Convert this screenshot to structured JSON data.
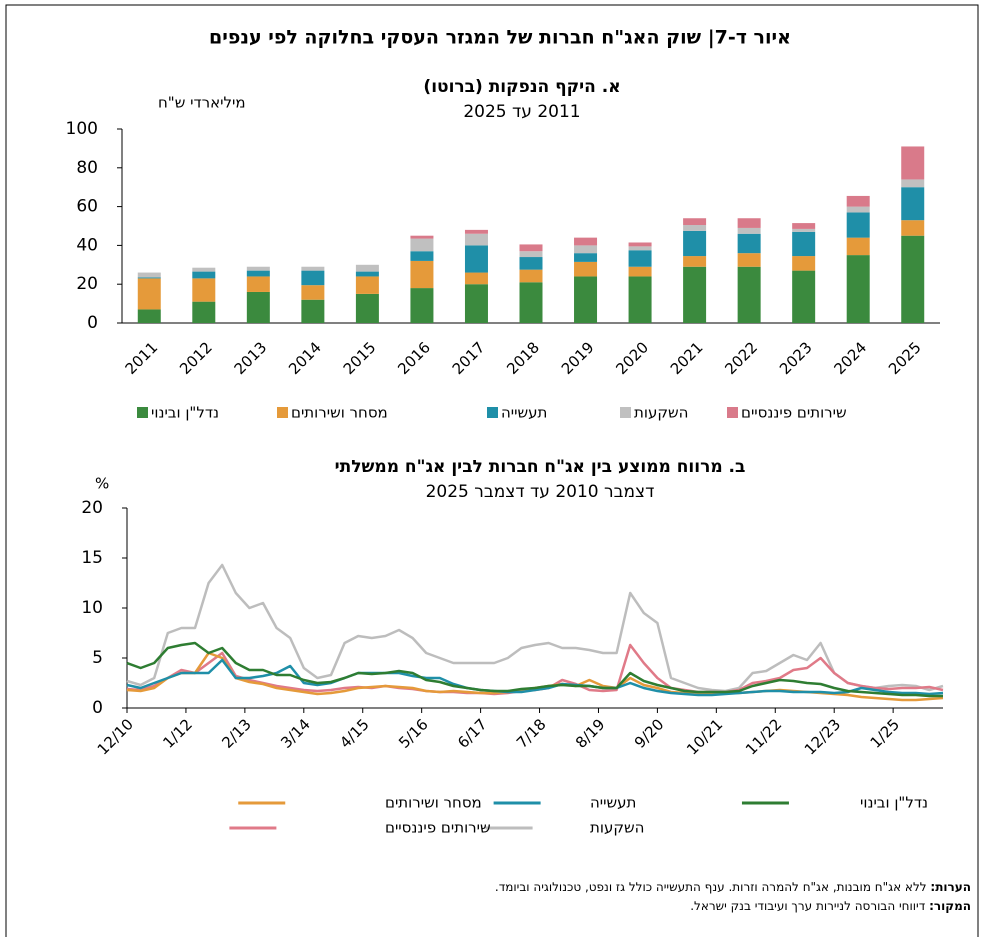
{
  "title": "איור ד-7| שוק האג\"ח חברות של המגזר העסקי בחלוקה לפי ענפים",
  "chart_data": [
    {
      "type": "bar",
      "stacked": true,
      "title": "א. היקף הנפקות (ברוטו)",
      "subtitle": "2011 עד 2025",
      "ylabel": "מיליארדי ש\"ח",
      "categories": [
        "2011",
        "2012",
        "2013",
        "2014",
        "2015",
        "2016",
        "2017",
        "2018",
        "2019",
        "2020",
        "2021",
        "2022",
        "2023",
        "2024",
        "2025"
      ],
      "series": [
        {
          "name": "נדל\"ן ובינוי",
          "color": "#3b8a3e",
          "values": [
            7,
            11,
            16,
            12,
            15,
            18,
            20,
            21,
            24,
            24,
            29,
            29,
            27,
            35,
            45
          ]
        },
        {
          "name": "מסחר ושירותים",
          "color": "#e59a3a",
          "values": [
            16,
            12,
            8,
            7.5,
            9,
            14,
            6,
            6.5,
            7.5,
            5,
            5.5,
            7,
            7.5,
            9,
            8
          ]
        },
        {
          "name": "תעשייה",
          "color": "#1f8fa8",
          "values": [
            0.5,
            3.5,
            3,
            7.5,
            2.5,
            5,
            14,
            6.5,
            4.5,
            8.5,
            13,
            10,
            12.5,
            13,
            17
          ]
        },
        {
          "name": "השקעות",
          "color": "#c0c0c0",
          "values": [
            2.5,
            2,
            2,
            2,
            3.5,
            6.5,
            6,
            3,
            4,
            2,
            3,
            3,
            1.5,
            3,
            4
          ]
        },
        {
          "name": "שירותים פיננסיים",
          "color": "#d97a8a",
          "values": [
            0,
            0,
            0,
            0,
            0,
            1.5,
            2,
            3.5,
            4,
            2,
            3.5,
            5,
            3,
            5.5,
            17
          ]
        }
      ],
      "ylim": [
        0,
        100
      ],
      "yticks": [
        0,
        20,
        40,
        60,
        80,
        100
      ],
      "grid": false
    },
    {
      "type": "line",
      "title": "ב. מרווח ממוצע בין אג\"ח חברות לבין אג\"ח ממשלתי",
      "subtitle": "דצמבר 2010 עד דצמבר 2025",
      "ylabel": "%",
      "x": [
        "12/10",
        "3/11",
        "6/11",
        "9/11",
        "12/11",
        "3/12",
        "6/12",
        "9/12",
        "12/12",
        "3/13",
        "6/13",
        "9/13",
        "12/13",
        "3/14",
        "6/14",
        "9/14",
        "12/14",
        "3/15",
        "6/15",
        "9/15",
        "12/15",
        "3/16",
        "6/16",
        "9/16",
        "12/16",
        "3/17",
        "6/17",
        "9/17",
        "12/17",
        "3/18",
        "6/18",
        "9/18",
        "12/18",
        "3/19",
        "6/19",
        "9/19",
        "12/19",
        "3/20",
        "6/20",
        "9/20",
        "12/20",
        "3/21",
        "6/21",
        "9/21",
        "12/21",
        "3/22",
        "6/22",
        "9/22",
        "12/22",
        "3/23",
        "6/23",
        "9/23",
        "12/23",
        "3/24",
        "6/24",
        "9/24",
        "12/24",
        "3/25",
        "6/25",
        "9/25",
        "12/25"
      ],
      "series": [
        {
          "name": "נדל\"ן ובינוי",
          "color": "#2e7d32",
          "values": [
            4.5,
            4,
            4.5,
            6,
            6.3,
            6.5,
            5.5,
            6,
            4.5,
            3.8,
            3.8,
            3.3,
            3.3,
            2.8,
            2.5,
            2.6,
            3,
            3.5,
            3.4,
            3.5,
            3.7,
            3.5,
            2.8,
            2.6,
            2.2,
            2,
            1.8,
            1.7,
            1.7,
            1.9,
            2,
            2.2,
            2.3,
            2.2,
            2.2,
            2,
            2,
            3.5,
            2.7,
            2.3,
            2,
            1.7,
            1.6,
            1.6,
            1.6,
            1.7,
            2.2,
            2.5,
            2.8,
            2.7,
            2.5,
            2.4,
            2,
            1.7,
            1.6,
            1.5,
            1.4,
            1.3,
            1.3,
            1.2,
            1.2
          ]
        },
        {
          "name": "תעשייה",
          "color": "#1f8fa8",
          "values": [
            2.3,
            2,
            2.5,
            3,
            3.5,
            3.5,
            3.5,
            4.8,
            3,
            3,
            3.2,
            3.5,
            4.2,
            2.5,
            2.3,
            2.5,
            3,
            3.5,
            3.5,
            3.5,
            3.5,
            3.2,
            3,
            3,
            2.4,
            2,
            1.8,
            1.7,
            1.6,
            1.6,
            1.8,
            2,
            2.4,
            2.3,
            2.2,
            2,
            2,
            2.5,
            2,
            1.7,
            1.5,
            1.4,
            1.3,
            1.3,
            1.4,
            1.5,
            1.6,
            1.7,
            1.7,
            1.6,
            1.6,
            1.6,
            1.5,
            1.6,
            2,
            1.8,
            1.6,
            1.5,
            1.5,
            1.4,
            1.5
          ]
        },
        {
          "name": "מסחר ושירותים",
          "color": "#e59a3a",
          "values": [
            1.8,
            1.7,
            2,
            3,
            3.5,
            3.5,
            5.5,
            5,
            3,
            2.6,
            2.4,
            2,
            1.8,
            1.6,
            1.4,
            1.5,
            1.7,
            2,
            2.1,
            2.2,
            2.1,
            2,
            1.7,
            1.6,
            1.7,
            1.6,
            1.5,
            1.5,
            1.6,
            1.8,
            2,
            2.2,
            2.4,
            2.2,
            2.8,
            2.2,
            2,
            3,
            2.3,
            2,
            1.6,
            1.5,
            1.4,
            1.4,
            1.5,
            1.5,
            1.6,
            1.7,
            1.8,
            1.7,
            1.6,
            1.5,
            1.4,
            1.3,
            1.1,
            1,
            0.9,
            0.8,
            0.8,
            0.9,
            1
          ]
        },
        {
          "name": "השקעות",
          "color": "#bdbdbd",
          "values": [
            2.7,
            2.3,
            3,
            7.5,
            8,
            8,
            12.5,
            14.3,
            11.5,
            10,
            10.5,
            8,
            7,
            4,
            3,
            3.3,
            6.5,
            7.2,
            7,
            7.2,
            7.8,
            7,
            5.5,
            5,
            4.5,
            4.5,
            4.5,
            4.5,
            5,
            6,
            6.3,
            6.5,
            6,
            6,
            5.8,
            5.5,
            5.5,
            11.5,
            9.5,
            8.5,
            3,
            2.5,
            2,
            1.8,
            1.7,
            2,
            3.5,
            3.7,
            4.5,
            5.3,
            4.8,
            6.5,
            3.5,
            2.5,
            2.2,
            2,
            2.2,
            2.3,
            2.2,
            1.8,
            2.2
          ]
        },
        {
          "name": "שירותים פיננסיים",
          "color": "#e07a88",
          "values": [
            1.9,
            1.8,
            2.2,
            3,
            3.8,
            3.5,
            4.5,
            5.5,
            3.2,
            2.8,
            2.5,
            2.2,
            2,
            1.8,
            1.7,
            1.8,
            2,
            2.1,
            2,
            2.2,
            2,
            1.9,
            1.7,
            1.6,
            1.6,
            1.5,
            1.5,
            1.4,
            1.5,
            1.7,
            1.8,
            2,
            2.8,
            2.4,
            1.8,
            1.7,
            1.8,
            6.3,
            4.5,
            3,
            2,
            1.8,
            1.6,
            1.6,
            1.6,
            1.8,
            2.5,
            2.7,
            3,
            3.8,
            4,
            5,
            3.5,
            2.5,
            2.2,
            2,
            1.9,
            2,
            2,
            2.1,
            1.8
          ]
        }
      ],
      "xlim": [
        "12/10",
        "12/25"
      ],
      "xticks": [
        "12/10",
        "1/12",
        "2/13",
        "3/14",
        "4/15",
        "5/16",
        "6/17",
        "7/18",
        "8/19",
        "9/20",
        "10/21",
        "11/22",
        "12/23",
        "1/25"
      ],
      "ylim": [
        0,
        20
      ],
      "yticks": [
        0,
        5,
        10,
        15,
        20
      ],
      "grid": false
    }
  ],
  "notes": [
    {
      "label": "הערות:",
      "text": "ללא אג\"ח מובנות, אג\"ח להמרה וזרות. ענף התעשייה כולל גז ונפט, טכנולוגיה וביומד."
    },
    {
      "label": "המקור:",
      "text": "דיווחי הבורסה לניירות ערך ועיבודי בנק ישראל."
    }
  ]
}
